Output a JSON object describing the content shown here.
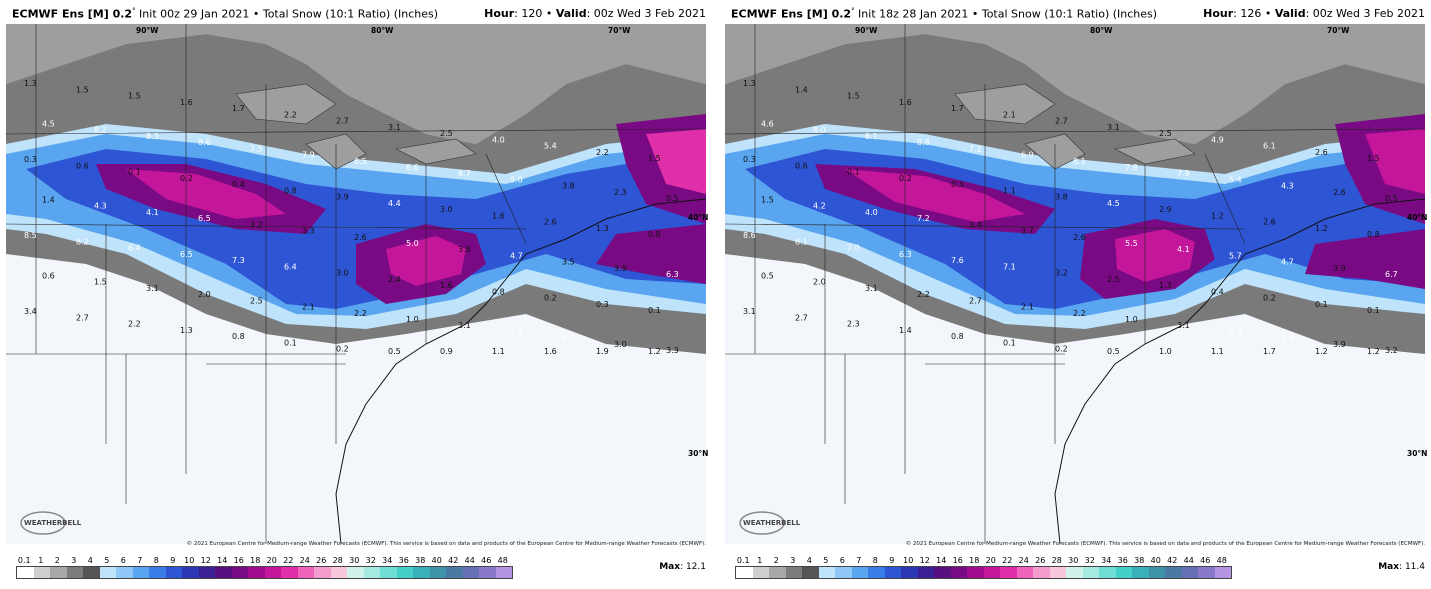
{
  "panels": [
    {
      "model": "ECMWF Ens [M] 0.2",
      "degree": "°",
      "init": " Init 00z 29 Jan 2021",
      "bullet": " • ",
      "product": "Total Snow (10:1 Ratio) (Inches)",
      "hour_label": "Hour",
      "hour": ": 120",
      "valid_label": "Valid",
      "valid": ": 00z Wed 3 Feb 2021",
      "max_label": "Max",
      "max_value": ": 12.1",
      "copyright": "© 2021 European Centre for Medium-range Weather Forecasts (ECMWF). This service is based on data and products of the European Centre for Medium-range Weather Forecasts (ECMWF).",
      "labels_80w": "80°W",
      "labels_70w": "70°W",
      "labels_90w": "90°W",
      "labels_40n": "40°N",
      "labels_30n": "30°N",
      "values": [
        "1.3",
        "1.5",
        "1.5",
        "1.6",
        "1.7",
        "2.2",
        "2.7",
        "3.1",
        "2.5",
        "4.0",
        "5.4",
        "2.2",
        "1.5",
        "4.5",
        "8.2",
        "8.3",
        "8.6",
        "7.5",
        "7.9",
        "6.5",
        "6.6",
        "6.7",
        "5.0",
        "3.8",
        "2.3",
        "0.5",
        "0.3",
        "0.6",
        "0.1",
        "0.2",
        "0.4",
        "0.8",
        "3.9",
        "4.4",
        "3.0",
        "1.6",
        "2.6",
        "1.3",
        "0.8",
        "1.4",
        "4.3",
        "4.1",
        "6.5",
        "3.2",
        "3.3",
        "2.6",
        "5.0",
        "3.8",
        "4.7",
        "3.5",
        "3.9",
        "6.3",
        "8.5",
        "8.2",
        "6.4",
        "6.5",
        "7.3",
        "6.4",
        "3.0",
        "2.4",
        "1.6",
        "0.8",
        "0.2",
        "0.3",
        "0.1",
        "0.6",
        "1.5",
        "3.1",
        "2.0",
        "2.5",
        "2.1",
        "2.2",
        "1.0",
        "3.1",
        "4.9",
        "6.1",
        "3.0",
        "3.3",
        "3.4",
        "2.7",
        "2.2",
        "1.3",
        "0.8",
        "0.1",
        "0.2",
        "0.5",
        "0.9",
        "1.1",
        "1.6",
        "1.9",
        "1.2"
      ]
    },
    {
      "model": "ECMWF Ens [M] 0.2",
      "degree": "°",
      "init": " Init 18z 28 Jan 2021",
      "bullet": " • ",
      "product": "Total Snow (10:1 Ratio) (Inches)",
      "hour_label": "Hour",
      "hour": ": 126",
      "valid_label": "Valid",
      "valid": ": 00z Wed 3 Feb 2021",
      "max_label": "Max",
      "max_value": ": 11.4",
      "copyright": "© 2021 European Centre for Medium-range Weather Forecasts (ECMWF). This service is based on data and products of the European Centre for Medium-range Weather Forecasts (ECMWF).",
      "labels_80w": "80°W",
      "labels_70w": "70°W",
      "labels_90w": "90°W",
      "labels_40n": "40°N",
      "labels_30n": "30°N",
      "values": [
        "1.3",
        "1.4",
        "1.5",
        "1.6",
        "1.7",
        "2.1",
        "2.7",
        "3.1",
        "2.5",
        "4.9",
        "6.1",
        "2.6",
        "1.5",
        "4.6",
        "8.0",
        "8.1",
        "8.8",
        "7.2",
        "6.9",
        "8.1",
        "7.8",
        "7.9",
        "5.4",
        "4.3",
        "2.6",
        "0.5",
        "0.3",
        "0.6",
        "0.1",
        "0.2",
        "0.3",
        "1.1",
        "3.8",
        "4.5",
        "2.9",
        "1.2",
        "2.6",
        "1.2",
        "0.8",
        "1.5",
        "4.2",
        "4.0",
        "7.2",
        "3.4",
        "3.7",
        "2.6",
        "5.5",
        "4.1",
        "5.7",
        "4.7",
        "3.9",
        "6.7",
        "8.6",
        "8.1",
        "7.0",
        "6.3",
        "7.6",
        "7.1",
        "3.2",
        "2.5",
        "1.3",
        "0.4",
        "0.2",
        "0.1",
        "0.1",
        "0.5",
        "2.0",
        "3.1",
        "2.2",
        "2.7",
        "2.1",
        "2.2",
        "1.0",
        "3.1",
        "4.3",
        "5.9",
        "3.9",
        "3.2",
        "3.1",
        "2.7",
        "2.3",
        "1.4",
        "0.8",
        "0.1",
        "0.2",
        "0.5",
        "1.0",
        "1.1",
        "1.7",
        "1.2",
        "1.2"
      ]
    }
  ],
  "legend": {
    "ticks": [
      "0.1",
      "1",
      "2",
      "3",
      "4",
      "5",
      "6",
      "7",
      "8",
      "9",
      "10",
      "12",
      "14",
      "16",
      "18",
      "20",
      "22",
      "24",
      "26",
      "28",
      "30",
      "32",
      "34",
      "36",
      "38",
      "40",
      "42",
      "44",
      "46",
      "48"
    ],
    "colors": [
      "#ffffff",
      "#cfcfcf",
      "#a8a8a8",
      "#7c7c7c",
      "#555555",
      "#bfe3fb",
      "#8fc7f6",
      "#5aa5ef",
      "#3b7de6",
      "#2e55d4",
      "#2d37b5",
      "#3b1f94",
      "#5a0f80",
      "#7a0a83",
      "#a10c8e",
      "#c3169a",
      "#df2fa9",
      "#ef63bd",
      "#f49ccd",
      "#f7c7dc",
      "#d2f1ed",
      "#a5e9e1",
      "#6fdfd6",
      "#44cfcb",
      "#38b2b8",
      "#3f93a8",
      "#4c79a3",
      "#6670b4",
      "#8a78ca",
      "#b594e3"
    ]
  },
  "logo": "WEATHERBELL"
}
